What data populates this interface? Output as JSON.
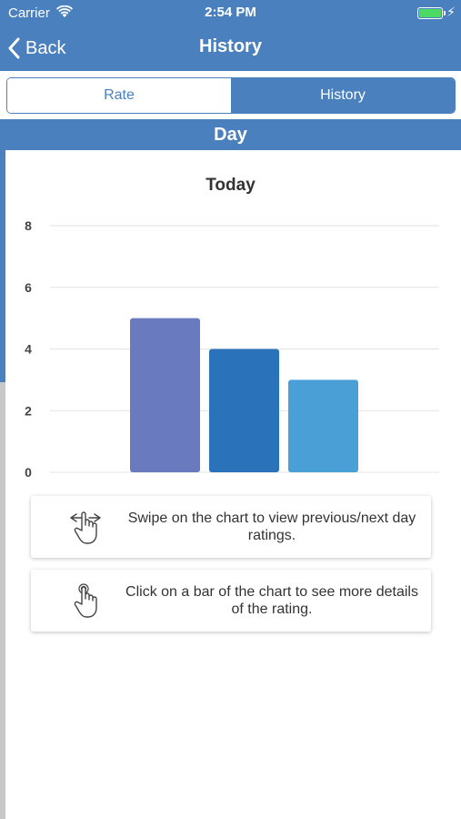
{
  "status_bar": {
    "carrier": "Carrier",
    "time": "2:54 PM",
    "battery_level": 1.0,
    "battery_color": "#4cd964"
  },
  "nav": {
    "back_label": "Back",
    "title": "History",
    "back_icon": "chevron-left-icon"
  },
  "tabs": [
    {
      "label": "Rate",
      "selected": false
    },
    {
      "label": "History",
      "selected": true
    }
  ],
  "section_header": "Day",
  "colors": {
    "accent": "#4a80bd",
    "bar_1": "#6a7abf",
    "bar_2": "#2a72b9",
    "bar_3": "#4a9fd6"
  },
  "chart_data": {
    "type": "bar",
    "title": "Today",
    "categories": [
      "",
      "",
      ""
    ],
    "values": [
      5,
      4,
      3
    ],
    "ylim": [
      0,
      8
    ],
    "yticks": [
      0,
      2,
      4,
      6,
      8
    ],
    "grid": true,
    "legend": false
  },
  "hints": [
    {
      "icon": "swipe-hand-icon",
      "text": "Swipe on the chart to view previous/next day ratings."
    },
    {
      "icon": "tap-hand-icon",
      "text": "Click on a bar of the chart to see more details of the rating."
    }
  ]
}
